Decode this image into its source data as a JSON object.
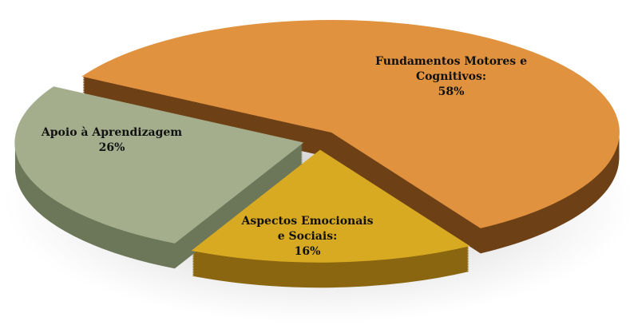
{
  "chart_data": {
    "type": "pie",
    "categories": [
      "Fundamentos Motores e Cognitivos:",
      "Aspectos Emocionais e Sociais:",
      "Apoio à Aprendizagem"
    ],
    "values": [
      58,
      16,
      26
    ],
    "value_labels": [
      "58%",
      "16%",
      "26%"
    ],
    "colors": [
      "#e0923f",
      "#d8aa22",
      "#a4ae8d"
    ],
    "side_colors": [
      "#6e4016",
      "#8a6610",
      "#6c7659"
    ]
  }
}
